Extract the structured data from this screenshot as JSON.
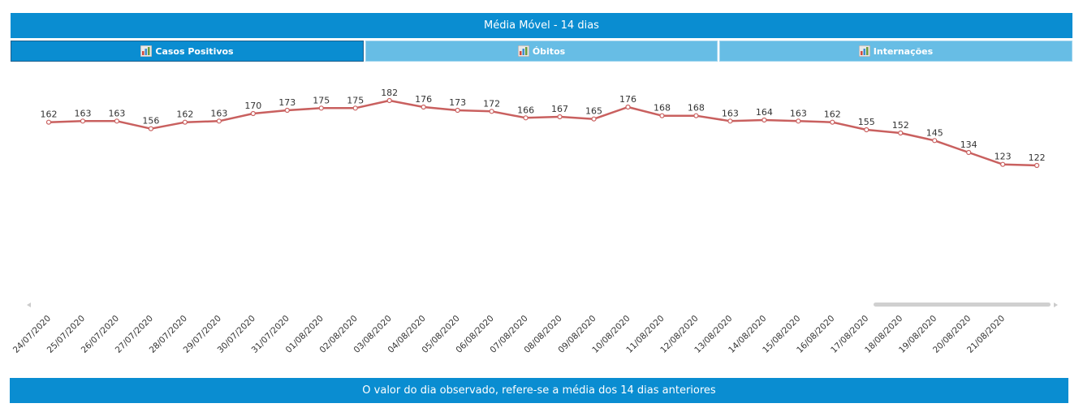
{
  "header": {
    "title": "Média Móvel - 14 dias"
  },
  "tabs": [
    {
      "label": "Casos Positivos",
      "icon": "bar-chart-icon",
      "active": true
    },
    {
      "label": "Óbitos",
      "icon": "bar-chart-icon",
      "active": false
    },
    {
      "label": "Internações",
      "icon": "bar-chart-icon",
      "active": false
    }
  ],
  "footer": {
    "note": "O valor do dia observado, refere-se a média dos 14 dias anteriores"
  },
  "colors": {
    "accent": "#0a8dd1",
    "accent_light": "#67bde5",
    "line": "#c9605f"
  },
  "chart_data": {
    "type": "line",
    "title": "",
    "xlabel": "",
    "ylabel": "",
    "categories": [
      "24/07/2020",
      "25/07/2020",
      "26/07/2020",
      "27/07/2020",
      "28/07/2020",
      "29/07/2020",
      "30/07/2020",
      "31/07/2020",
      "01/08/2020",
      "02/08/2020",
      "03/08/2020",
      "04/08/2020",
      "05/08/2020",
      "06/08/2020",
      "07/08/2020",
      "08/08/2020",
      "09/08/2020",
      "10/08/2020",
      "11/08/2020",
      "12/08/2020",
      "13/08/2020",
      "14/08/2020",
      "15/08/2020",
      "16/08/2020",
      "17/08/2020",
      "18/08/2020",
      "19/08/2020",
      "20/08/2020",
      "21/08/2020",
      ""
    ],
    "series": [
      {
        "values": [
          162,
          163,
          163,
          156,
          162,
          163,
          170,
          173,
          175,
          175,
          182,
          176,
          173,
          172,
          166,
          167,
          165,
          176,
          168,
          168,
          163,
          164,
          163,
          162,
          155,
          152,
          145,
          134,
          123,
          122
        ]
      }
    ],
    "data_labels": true,
    "grid": false,
    "legend": "none",
    "horizontal_scrollbar": true
  }
}
